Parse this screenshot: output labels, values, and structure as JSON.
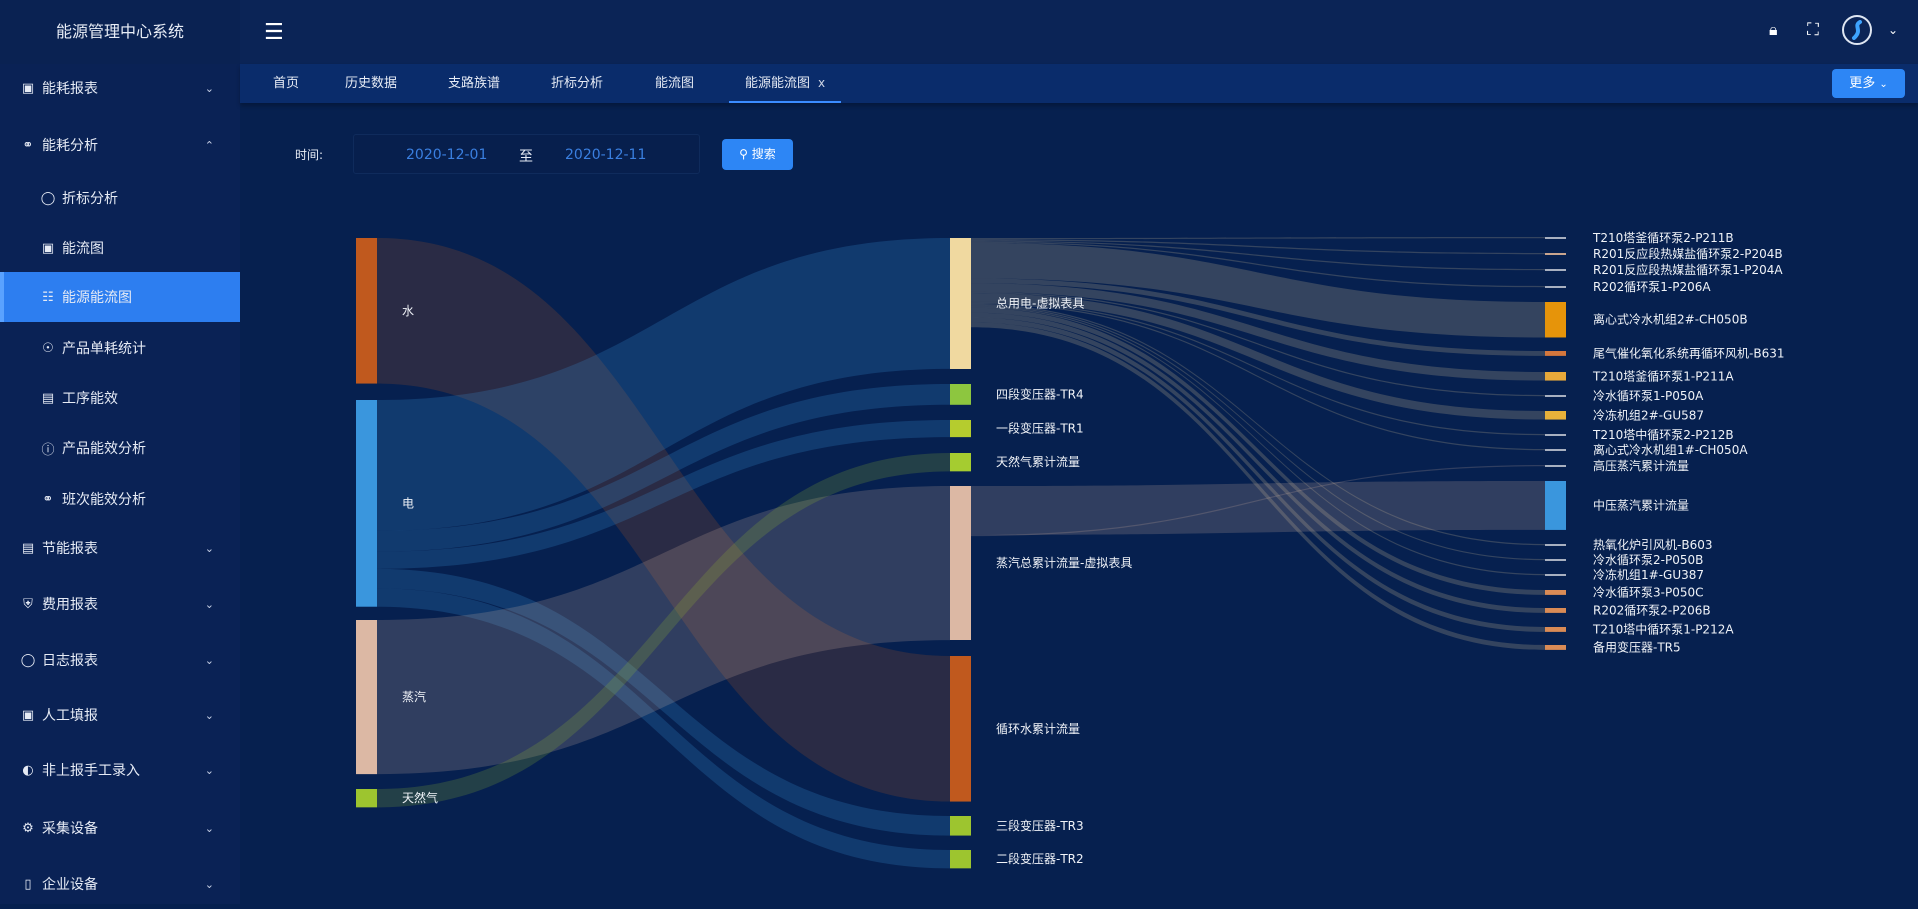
{
  "app": {
    "title": "能源管理中心系统"
  },
  "sidebar": {
    "items": [
      {
        "label": "能耗报表",
        "icon": "report-icon",
        "expanded": false
      },
      {
        "label": "能耗分析",
        "icon": "analysis-icon",
        "expanded": true
      },
      {
        "label": "折标分析",
        "icon": "chat-bubble-icon"
      },
      {
        "label": "能流图",
        "icon": "report-icon"
      },
      {
        "label": "能源能流图",
        "icon": "org-chart-icon",
        "active": true
      },
      {
        "label": "产品单耗统计",
        "icon": "location-pin-icon"
      },
      {
        "label": "工序能效",
        "icon": "message-icon"
      },
      {
        "label": "产品能效分析",
        "icon": "info-icon"
      },
      {
        "label": "班次能效分析",
        "icon": "analysis-icon"
      },
      {
        "label": "节能报表",
        "icon": "message-icon",
        "expanded": false
      },
      {
        "label": "费用报表",
        "icon": "shield-check-icon",
        "expanded": false
      },
      {
        "label": "日志报表",
        "icon": "chat-bubble-icon",
        "expanded": false
      },
      {
        "label": "人工填报",
        "icon": "image-icon",
        "expanded": false
      },
      {
        "label": "非上报手工录入",
        "icon": "wechat-icon",
        "expanded": false
      },
      {
        "label": "采集设备",
        "icon": "gear-icon",
        "expanded": false
      },
      {
        "label": "企业设备",
        "icon": "mobile-icon",
        "expanded": false
      }
    ]
  },
  "tabs": [
    {
      "label": "首页"
    },
    {
      "label": "历史数据"
    },
    {
      "label": "支路族谱"
    },
    {
      "label": "折标分析"
    },
    {
      "label": "能流图"
    },
    {
      "label": "能源能流图",
      "active": true,
      "close": "x"
    }
  ],
  "more_label": "更多",
  "filter": {
    "time_label": "时间:",
    "start": "2020-12-01",
    "separator": "至",
    "end": "2020-12-11",
    "search_label": "搜索"
  },
  "chart_data": {
    "type": "sankey",
    "nodes": [
      {
        "name": "水",
        "color": "#c0591e"
      },
      {
        "name": "电",
        "color": "#3a96dd"
      },
      {
        "name": "蒸汽",
        "color": "#dcb8a4"
      },
      {
        "name": "天然气",
        "color": "#9dc52f"
      },
      {
        "name": "总用电-虚拟表具",
        "color": "#f0d9a0"
      },
      {
        "name": "四段变压器-TR4",
        "color": "#8dc63f"
      },
      {
        "name": "一段变压器-TR1",
        "color": "#b5cc2e"
      },
      {
        "name": "天然气累计流量",
        "color": "#a5cc30"
      },
      {
        "name": "蒸汽总累计流量-虚拟表具",
        "color": "#dcb8a4"
      },
      {
        "name": "循环水累计流量",
        "color": "#c0591e"
      },
      {
        "name": "三段变压器-TR3",
        "color": "#9dc52f"
      },
      {
        "name": "二段变压器-TR2",
        "color": "#9dc52f"
      },
      {
        "name": "T210塔釜循环泵2-P211B",
        "color": "#a8b0c0"
      },
      {
        "name": "R201反应段热媒盐循环泵2-P204B",
        "color": "#c9a58f"
      },
      {
        "name": "R201反应段热媒盐循环泵1-P204A",
        "color": "#a8b0c0"
      },
      {
        "name": "R202循环泵1-P206A",
        "color": "#a8b0c0"
      },
      {
        "name": "离心式冷水机组2#-CH050B",
        "color": "#e6940a"
      },
      {
        "name": "尾气催化氧化系统再循环风机-B631",
        "color": "#d4773d"
      },
      {
        "name": "T210塔釜循环泵1-P211A",
        "color": "#e8a93a"
      },
      {
        "name": "冷水循环泵1-P050A",
        "color": "#a8b0c0"
      },
      {
        "name": "冷冻机组2#-GU587",
        "color": "#e8b13a"
      },
      {
        "name": "T210塔中循环泵2-P212B",
        "color": "#a8b0c0"
      },
      {
        "name": "离心式冷水机组1#-CH050A",
        "color": "#a8b0c0"
      },
      {
        "name": "高压蒸汽累计流量",
        "color": "#a8b0c0"
      },
      {
        "name": "中压蒸汽累计流量",
        "color": "#3a96dd"
      },
      {
        "name": "热氧化炉引风机-B603",
        "color": "#a8b0c0"
      },
      {
        "name": "冷水循环泵2-P050B",
        "color": "#a8b0c0"
      },
      {
        "name": "冷冻机组1#-GU387",
        "color": "#a8b0c0"
      },
      {
        "name": "冷水循环泵3-P050C",
        "color": "#d98b56"
      },
      {
        "name": "R202循环泵2-P206B",
        "color": "#d98b56"
      },
      {
        "name": "T210塔中循环泵1-P212A",
        "color": "#d98b56"
      },
      {
        "name": "备用变压器-TR5",
        "color": "#d98b56"
      }
    ],
    "links": [
      {
        "source": 0,
        "target": 9,
        "value": 119
      },
      {
        "source": 1,
        "target": 4,
        "value": 107
      },
      {
        "source": 1,
        "target": 5,
        "value": 17
      },
      {
        "source": 1,
        "target": 6,
        "value": 14
      },
      {
        "source": 1,
        "target": 10,
        "value": 16
      },
      {
        "source": 1,
        "target": 11,
        "value": 15
      },
      {
        "source": 2,
        "target": 8,
        "value": 126
      },
      {
        "source": 3,
        "target": 7,
        "value": 15
      },
      {
        "source": 4,
        "target": 12,
        "value": 1
      },
      {
        "source": 4,
        "target": 13,
        "value": 1
      },
      {
        "source": 4,
        "target": 14,
        "value": 1
      },
      {
        "source": 4,
        "target": 15,
        "value": 1
      },
      {
        "source": 4,
        "target": 16,
        "value": 29
      },
      {
        "source": 4,
        "target": 17,
        "value": 4
      },
      {
        "source": 4,
        "target": 18,
        "value": 7
      },
      {
        "source": 4,
        "target": 19,
        "value": 1
      },
      {
        "source": 4,
        "target": 20,
        "value": 7
      },
      {
        "source": 4,
        "target": 21,
        "value": 1
      },
      {
        "source": 4,
        "target": 22,
        "value": 1
      },
      {
        "source": 4,
        "target": 25,
        "value": 1
      },
      {
        "source": 4,
        "target": 26,
        "value": 1
      },
      {
        "source": 4,
        "target": 27,
        "value": 1
      },
      {
        "source": 4,
        "target": 28,
        "value": 4
      },
      {
        "source": 4,
        "target": 29,
        "value": 4
      },
      {
        "source": 4,
        "target": 30,
        "value": 4
      },
      {
        "source": 4,
        "target": 31,
        "value": 4
      },
      {
        "source": 8,
        "target": 24,
        "value": 40
      },
      {
        "source": 8,
        "target": 23,
        "value": 1
      }
    ]
  }
}
